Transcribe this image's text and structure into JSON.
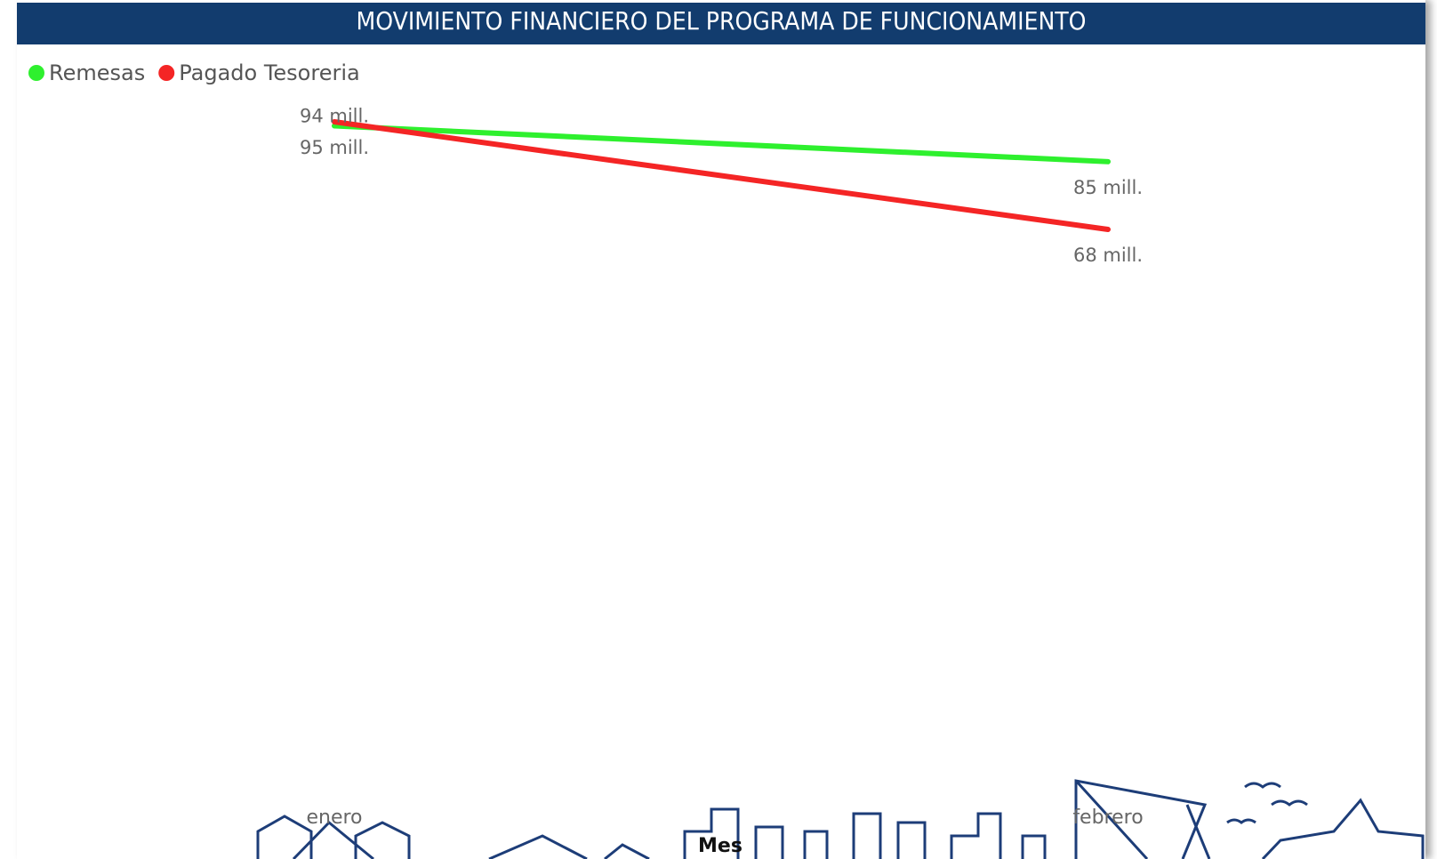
{
  "chart_data": {
    "type": "line",
    "title": "MOVIMIENTO FINANCIERO DEL PROGRAMA DE FUNCIONAMIENTO",
    "x_label": "Mes",
    "categories": [
      "enero",
      "febrero"
    ],
    "series": [
      {
        "name": "Remesas",
        "color": "#2ef02e",
        "values": [
          94,
          85
        ],
        "value_labels": [
          "94 mill.",
          "85 mill."
        ]
      },
      {
        "name": "Pagado Tesoreria",
        "color": "#f42525",
        "values": [
          95,
          68
        ],
        "value_labels": [
          "95 mill.",
          "68 mill."
        ]
      }
    ],
    "legend": "top-left",
    "title_color": "#123c6e"
  }
}
